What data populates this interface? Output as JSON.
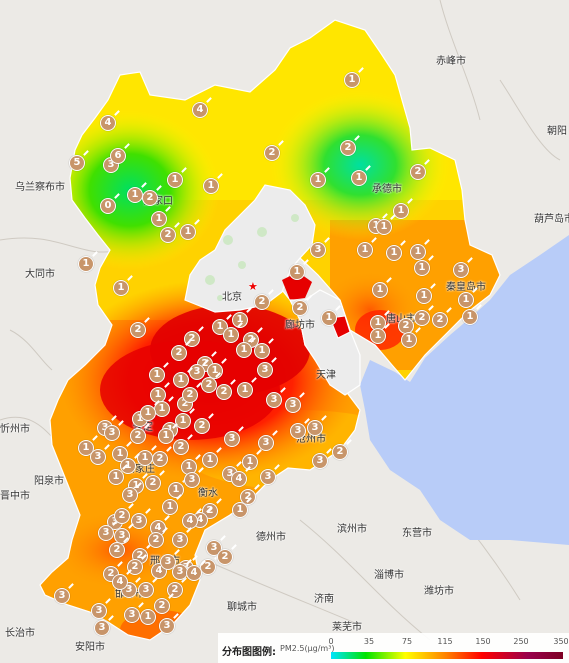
{
  "cities": [
    {
      "id": "chifeng",
      "name": "赤峰市"
    },
    {
      "id": "wulanchabu",
      "name": "乌兰察布市"
    },
    {
      "id": "chaoyang",
      "name": "朝阳"
    },
    {
      "id": "huludao",
      "name": "葫芦岛市"
    },
    {
      "id": "zhangjiakou",
      "name": "张家口"
    },
    {
      "id": "chengde",
      "name": "承德市"
    },
    {
      "id": "datong",
      "name": "大同市"
    },
    {
      "id": "beijing",
      "name": "北京"
    },
    {
      "id": "qinhuangdao",
      "name": "秦皇岛市"
    },
    {
      "id": "tangshan",
      "name": "唐山市"
    },
    {
      "id": "langfang",
      "name": "廊坊市"
    },
    {
      "id": "tianjin",
      "name": "天津"
    },
    {
      "id": "baoding",
      "name": "保定"
    },
    {
      "id": "cangzhou",
      "name": "沧州市"
    },
    {
      "id": "xinzhou",
      "name": "忻州市"
    },
    {
      "id": "yangquan",
      "name": "阳泉市"
    },
    {
      "id": "jinzhong",
      "name": "晋中市"
    },
    {
      "id": "shijiazhuang",
      "name": "石家庄"
    },
    {
      "id": "hengshui",
      "name": "衡水"
    },
    {
      "id": "binzhou",
      "name": "滨州市"
    },
    {
      "id": "dongying",
      "name": "东营市"
    },
    {
      "id": "dezhou",
      "name": "德州市"
    },
    {
      "id": "zibo",
      "name": "淄博市"
    },
    {
      "id": "weifang",
      "name": "潍坊市"
    },
    {
      "id": "jinan",
      "name": "济南"
    },
    {
      "id": "laiwu",
      "name": "莱芜市"
    },
    {
      "id": "liaocheng",
      "name": "聊城市"
    },
    {
      "id": "xingtai",
      "name": "邢台市"
    },
    {
      "id": "handan",
      "name": "邯郸市"
    },
    {
      "id": "changzhi",
      "name": "长治市"
    },
    {
      "id": "anyang",
      "name": "安阳市"
    }
  ],
  "legend": {
    "title": "分布图图例:",
    "unit": "PM2.5(μg/m³)",
    "ticks": [
      "0",
      "35",
      "75",
      "115",
      "150",
      "250",
      "350"
    ],
    "colors": [
      "#00e4ff",
      "#00e400",
      "#ffff00",
      "#ff7e00",
      "#ff0000",
      "#99004c",
      "#7e0023"
    ]
  },
  "markers": [
    "4",
    "4",
    "1",
    "5",
    "3",
    "2",
    "1",
    "1",
    "0",
    "1",
    "2",
    "1",
    "2",
    "1",
    "6",
    "1",
    "1",
    "2",
    "1",
    "1",
    "2",
    "1",
    "1",
    "3",
    "1",
    "1",
    "1",
    "3",
    "1",
    "1",
    "1",
    "1",
    "1",
    "2",
    "1",
    "1",
    "2",
    "1",
    "1",
    "2",
    "2",
    "1",
    "2",
    "1",
    "1",
    "1",
    "2",
    "1",
    "2",
    "1",
    "2",
    "1",
    "2",
    "3",
    "2",
    "1",
    "3",
    "1",
    "1",
    "2",
    "1",
    "1",
    "1",
    "3",
    "2",
    "2",
    "2",
    "1",
    "3",
    "1",
    "1",
    "2",
    "1",
    "3",
    "3",
    "1",
    "3",
    "2",
    "2",
    "3",
    "1",
    "1",
    "1",
    "3",
    "3",
    "2",
    "1",
    "1",
    "1",
    "1",
    "3",
    "1",
    "1",
    "2",
    "1",
    "3",
    "3",
    "4",
    "3",
    "3",
    "2",
    "1",
    "1",
    "2",
    "3",
    "4",
    "3",
    "3",
    "4",
    "4",
    "3",
    "3",
    "2",
    "2",
    "3",
    "2",
    "2",
    "4",
    "3",
    "3",
    "3",
    "2",
    "2",
    "2",
    "3",
    "3",
    "2",
    "4",
    "3",
    "3",
    "3",
    "3",
    "1",
    "2",
    "3",
    "3",
    "4",
    "2",
    "2"
  ]
}
